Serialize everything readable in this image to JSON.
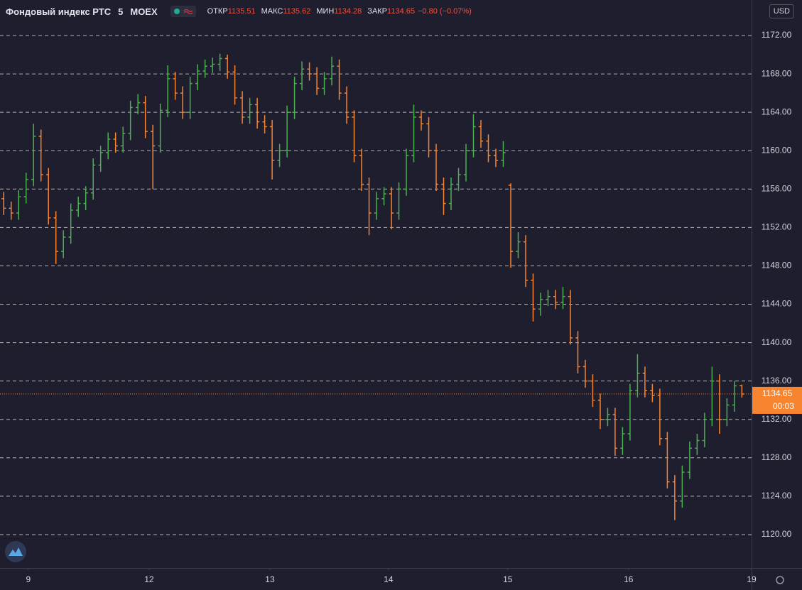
{
  "chart_data": {
    "type": "ohlc",
    "title": "Фондовый индекс РТС",
    "interval": "5",
    "exchange": "MOEX",
    "open_label": "ОТКР",
    "high_label": "МАКС",
    "low_label": "МИН",
    "close_label": "ЗАКР",
    "change_text": "−0.80 (−0.07%)",
    "currency": "USD",
    "countdown": "00:03",
    "up_color": "#4caf50",
    "down_color": "#f7842f",
    "grid": true,
    "xlim": [
      -0.5,
      100.3
    ],
    "ylim": [
      1116.52,
      1175.7
    ],
    "xticks": [
      {
        "value": 3.3,
        "label": "9"
      },
      {
        "value": 19.5,
        "label": "12"
      },
      {
        "value": 35.7,
        "label": "13"
      },
      {
        "value": 51.6,
        "label": "14"
      },
      {
        "value": 67.6,
        "label": "15"
      },
      {
        "value": 83.8,
        "label": "16"
      },
      {
        "value": 100.3,
        "label": "19"
      }
    ],
    "yticks": [
      {
        "value": 1120,
        "label": "1120.00"
      },
      {
        "value": 1124,
        "label": "1124.00"
      },
      {
        "value": 1128,
        "label": "1128.00"
      },
      {
        "value": 1132,
        "label": "1132.00"
      },
      {
        "value": 1136,
        "label": "1136.00"
      },
      {
        "value": 1140,
        "label": "1140.00"
      },
      {
        "value": 1144,
        "label": "1144.00"
      },
      {
        "value": 1148,
        "label": "1148.00"
      },
      {
        "value": 1152,
        "label": "1152.00"
      },
      {
        "value": 1156,
        "label": "1156.00"
      },
      {
        "value": 1160,
        "label": "1160.00"
      },
      {
        "value": 1164,
        "label": "1164.00"
      },
      {
        "value": 1168,
        "label": "1168.00"
      },
      {
        "value": 1172,
        "label": "1172.00"
      }
    ],
    "open": [
      1155.0,
      1154.0,
      1153.5,
      1155.2,
      1157.0,
      1161.5,
      1157.5,
      1153.0,
      1149.5,
      1151.0,
      1153.8,
      1154.5,
      1155.6,
      1158.5,
      1159.8,
      1161.2,
      1160.5,
      1161.8,
      1164.5,
      1165.0,
      1162.0,
      1160.5,
      1164.2,
      1167.5,
      1166.0,
      1164.0,
      1167.0,
      1168.3,
      1168.8,
      1169.0,
      1169.6,
      1168.2,
      1165.5,
      1163.5,
      1164.8,
      1163.0,
      1162.5,
      1159.0,
      1160.0,
      1164.0,
      1167.0,
      1168.5,
      1168.0,
      1166.5,
      1167.5,
      1168.8,
      1166.0,
      1163.5,
      1159.5,
      1156.5,
      1153.5,
      1155.0,
      1155.5,
      1153.5,
      1156.0,
      1159.5,
      1163.5,
      1162.8,
      1160.0,
      1156.5,
      1154.5,
      1156.5,
      1157.5,
      1160.0,
      1162.5,
      1161.0,
      1159.5,
      1159.0,
      1156.4,
      1149.5,
      1150.5,
      1146.5,
      1143.5,
      1144.5,
      1144.8,
      1144.2,
      1144.8,
      1140.5,
      1137.5,
      1136.0,
      1134.0,
      1132.0,
      1132.5,
      1129.0,
      1130.5,
      1135.0,
      1136.8,
      1135.0,
      1134.5,
      1130.0,
      1125.5,
      1123.5,
      1126.5,
      1129.0,
      1129.8,
      1132.0,
      1136.0,
      1132.0,
      1133.5,
      1135.51
    ],
    "high": [
      1155.7,
      1154.7,
      1155.9,
      1157.7,
      1162.8,
      1162.2,
      1158.2,
      1153.7,
      1151.7,
      1154.5,
      1155.2,
      1156.3,
      1159.2,
      1160.5,
      1161.9,
      1161.9,
      1162.5,
      1165.2,
      1165.9,
      1165.7,
      1162.7,
      1164.9,
      1168.9,
      1168.2,
      1166.7,
      1167.7,
      1169.0,
      1169.5,
      1169.7,
      1170.1,
      1170.0,
      1168.9,
      1166.2,
      1165.5,
      1165.5,
      1163.7,
      1163.2,
      1160.7,
      1164.7,
      1167.7,
      1169.3,
      1169.2,
      1168.7,
      1168.2,
      1169.8,
      1169.5,
      1166.7,
      1164.2,
      1160.2,
      1157.2,
      1155.7,
      1156.2,
      1156.2,
      1156.7,
      1160.2,
      1164.8,
      1164.2,
      1163.5,
      1160.7,
      1157.2,
      1157.2,
      1158.2,
      1160.7,
      1163.8,
      1163.2,
      1161.7,
      1160.2,
      1161.0,
      1156.6,
      1151.5,
      1151.2,
      1147.2,
      1145.2,
      1145.5,
      1145.5,
      1145.8,
      1145.5,
      1141.2,
      1138.2,
      1136.7,
      1134.7,
      1133.2,
      1133.2,
      1131.2,
      1135.7,
      1138.8,
      1137.5,
      1135.7,
      1135.2,
      1130.7,
      1126.2,
      1127.2,
      1129.7,
      1130.5,
      1132.7,
      1137.5,
      1136.7,
      1134.2,
      1136.0,
      1135.62
    ],
    "low": [
      1153.3,
      1152.8,
      1152.8,
      1154.5,
      1156.3,
      1156.8,
      1152.3,
      1148.2,
      1148.8,
      1150.3,
      1153.1,
      1153.8,
      1154.9,
      1157.8,
      1159.1,
      1159.8,
      1159.8,
      1161.1,
      1163.8,
      1161.3,
      1156.0,
      1159.8,
      1163.5,
      1165.3,
      1163.3,
      1163.3,
      1166.3,
      1167.6,
      1168.1,
      1168.3,
      1167.5,
      1164.8,
      1162.8,
      1162.8,
      1162.3,
      1161.8,
      1157.0,
      1158.3,
      1159.3,
      1163.3,
      1166.3,
      1167.3,
      1165.8,
      1165.8,
      1166.8,
      1165.3,
      1162.8,
      1158.8,
      1155.8,
      1151.2,
      1152.8,
      1154.3,
      1151.8,
      1152.8,
      1155.3,
      1158.8,
      1162.1,
      1159.3,
      1155.8,
      1153.3,
      1153.8,
      1155.8,
      1156.8,
      1159.3,
      1160.3,
      1158.8,
      1158.3,
      1158.3,
      1147.8,
      1148.8,
      1145.8,
      1142.2,
      1142.8,
      1143.8,
      1143.5,
      1143.5,
      1139.8,
      1136.8,
      1135.3,
      1133.3,
      1131.0,
      1131.3,
      1128.2,
      1128.3,
      1129.8,
      1134.3,
      1134.3,
      1133.8,
      1129.3,
      1124.8,
      1121.5,
      1122.8,
      1125.8,
      1128.3,
      1129.1,
      1131.3,
      1130.5,
      1131.3,
      1132.8,
      1134.28
    ],
    "close": [
      1154.0,
      1153.5,
      1155.2,
      1157.0,
      1161.5,
      1157.5,
      1153.0,
      1149.5,
      1151.0,
      1153.8,
      1154.5,
      1155.6,
      1158.5,
      1159.8,
      1161.2,
      1160.5,
      1161.8,
      1164.5,
      1165.0,
      1162.0,
      1160.5,
      1164.2,
      1167.5,
      1166.0,
      1164.0,
      1167.0,
      1168.3,
      1168.8,
      1169.0,
      1169.6,
      1168.2,
      1165.5,
      1163.5,
      1164.8,
      1163.0,
      1162.5,
      1159.0,
      1160.0,
      1164.0,
      1167.0,
      1168.5,
      1168.0,
      1166.5,
      1167.5,
      1168.8,
      1166.0,
      1163.5,
      1159.5,
      1156.5,
      1153.5,
      1155.0,
      1155.5,
      1153.5,
      1156.0,
      1159.5,
      1163.5,
      1162.8,
      1160.0,
      1156.5,
      1154.5,
      1156.5,
      1157.5,
      1160.0,
      1162.5,
      1161.0,
      1159.5,
      1159.0,
      1159.8,
      1149.5,
      1150.5,
      1146.5,
      1143.5,
      1144.5,
      1144.8,
      1144.2,
      1144.8,
      1140.5,
      1137.5,
      1136.0,
      1134.0,
      1132.0,
      1132.5,
      1129.0,
      1130.5,
      1135.0,
      1136.8,
      1135.0,
      1134.5,
      1130.0,
      1125.5,
      1123.5,
      1126.5,
      1129.0,
      1129.8,
      1132.0,
      1136.0,
      1132.0,
      1133.5,
      1135.5,
      1134.65
    ]
  }
}
